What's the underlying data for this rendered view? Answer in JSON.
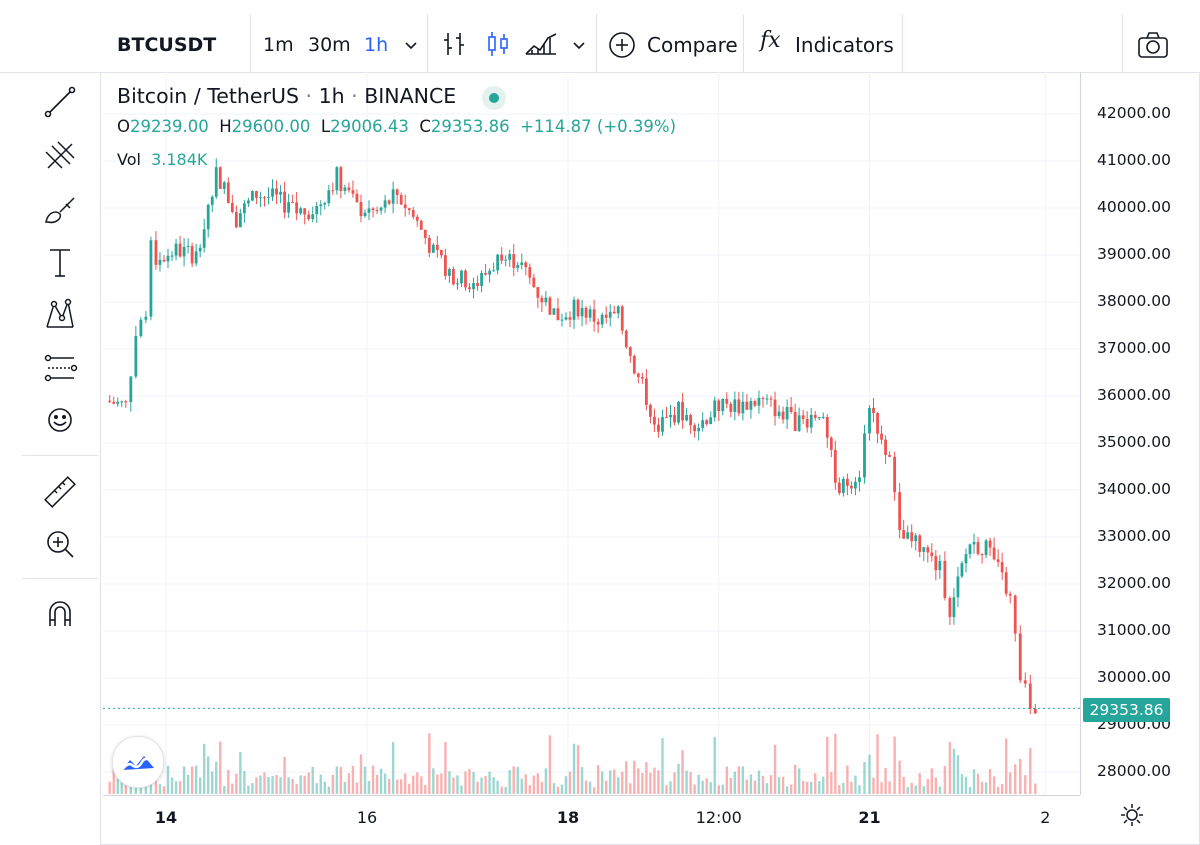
{
  "toolbar": {
    "symbol": "BTCUSDT",
    "intervals": [
      "1m",
      "30m",
      "1h"
    ],
    "active_interval": "1h",
    "compare_label": "Compare",
    "indicators_label": "Indicators",
    "fx_label": "fx"
  },
  "legend": {
    "pair": "Bitcoin / TetherUS",
    "interval": "1h",
    "exchange": "BINANCE",
    "o_label": "O",
    "o_value": "29239.00",
    "h_label": "H",
    "h_value": "29600.00",
    "l_label": "L",
    "l_value": "29006.43",
    "c_label": "C",
    "c_value": "29353.86",
    "change": "+114.87 (+0.39%)",
    "vol_label": "Vol",
    "vol_value": "3.184K"
  },
  "left_tools": [
    "crosshair-icon",
    "trend-line-icon",
    "fib-icon",
    "brush-icon",
    "text-icon",
    "pattern-icon",
    "forecast-icon",
    "emoji-icon",
    "ruler-icon",
    "zoom-in-icon",
    "magnet-icon"
  ],
  "colors": {
    "up": "#26a69a",
    "down": "#ef5350",
    "accent": "#2962ff",
    "grid": "#f0f3fa"
  },
  "chart_data": {
    "type": "candlestick",
    "title": "Bitcoin / TetherUS · 1h · BINANCE",
    "ylim": [
      27500,
      42800
    ],
    "y_ticks": [
      "42000.00",
      "41000.00",
      "40000.00",
      "39000.00",
      "38000.00",
      "37000.00",
      "36000.00",
      "35000.00",
      "34000.00",
      "33000.00",
      "32000.00",
      "31000.00",
      "30000.00",
      "29000.00",
      "28000.00"
    ],
    "x_ticks": [
      "14",
      "16",
      "18",
      "12:00",
      "21",
      "2"
    ],
    "last_price": "29353.86",
    "close_path": [
      [
        13.4,
        35900
      ],
      [
        13.6,
        35800
      ],
      [
        13.7,
        37300
      ],
      [
        13.8,
        37800
      ],
      [
        13.85,
        39200
      ],
      [
        13.9,
        38900
      ],
      [
        14.1,
        39100
      ],
      [
        14.3,
        39000
      ],
      [
        14.5,
        40800
      ],
      [
        14.7,
        39800
      ],
      [
        14.9,
        40300
      ],
      [
        15.1,
        40200
      ],
      [
        15.3,
        39900
      ],
      [
        15.5,
        40000
      ],
      [
        15.7,
        40700
      ],
      [
        15.9,
        40000
      ],
      [
        16.1,
        39900
      ],
      [
        16.3,
        40300
      ],
      [
        16.5,
        39700
      ],
      [
        16.7,
        38900
      ],
      [
        16.9,
        38500
      ],
      [
        17.1,
        38400
      ],
      [
        17.3,
        38900
      ],
      [
        17.5,
        38900
      ],
      [
        17.7,
        38200
      ],
      [
        17.9,
        37700
      ],
      [
        18.1,
        37900
      ],
      [
        18.3,
        37600
      ],
      [
        18.5,
        37700
      ],
      [
        18.7,
        36400
      ],
      [
        18.9,
        35300
      ],
      [
        19.1,
        35700
      ],
      [
        19.3,
        35400
      ],
      [
        19.5,
        35800
      ],
      [
        19.7,
        35800
      ],
      [
        19.9,
        35900
      ],
      [
        20.1,
        35700
      ],
      [
        20.3,
        35400
      ],
      [
        20.5,
        35700
      ],
      [
        20.7,
        34000
      ],
      [
        20.9,
        34400
      ],
      [
        21.0,
        35900
      ],
      [
        21.2,
        34600
      ],
      [
        21.3,
        33000
      ],
      [
        21.5,
        32800
      ],
      [
        21.7,
        32300
      ],
      [
        21.8,
        31500
      ],
      [
        22.0,
        32900
      ],
      [
        22.2,
        32700
      ],
      [
        22.4,
        31700
      ],
      [
        22.5,
        30000
      ],
      [
        22.6,
        29400
      ],
      [
        22.65,
        29354
      ]
    ],
    "volume": {
      "label": "Vol",
      "last": "3.184K"
    }
  }
}
